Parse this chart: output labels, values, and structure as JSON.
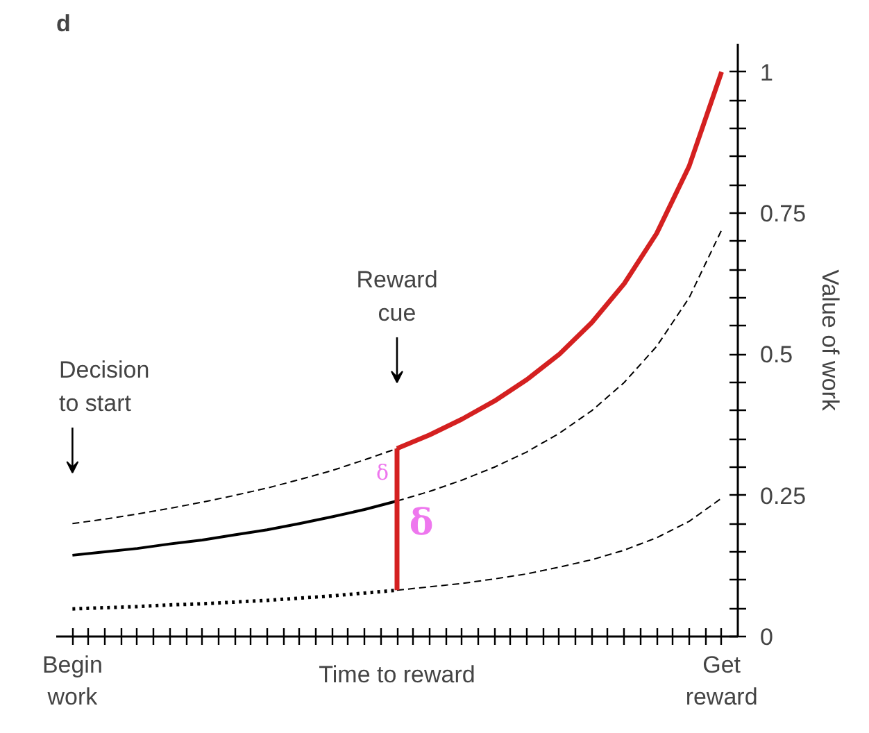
{
  "chart_data": {
    "type": "line",
    "title": "d",
    "xlabel": "Time to reward",
    "ylabel": "Value of work",
    "categories": [
      "Begin\nwork",
      null,
      null,
      null,
      null,
      null,
      null,
      null,
      null,
      null,
      null,
      null,
      null,
      null,
      null,
      null,
      null,
      null,
      null,
      null,
      "Get\nreward"
    ],
    "ylim": [
      0,
      1.05
    ],
    "yticks": [
      0,
      {
        "value": 0.05,
        "label": null
      },
      {
        "value": 0.1,
        "label": null
      },
      {
        "value": 0.15,
        "label": null
      },
      {
        "value": 0.2,
        "label": null
      },
      0.25,
      {
        "value": 0.3,
        "label": null
      },
      {
        "value": 0.35,
        "label": null
      },
      {
        "value": 0.4,
        "label": null
      },
      {
        "value": 0.45,
        "label": null
      },
      0.5,
      {
        "value": 0.55,
        "label": null
      },
      {
        "value": 0.6,
        "label": null
      },
      {
        "value": 0.65,
        "label": null
      },
      {
        "value": 0.7,
        "label": null
      },
      0.75,
      {
        "value": 0.8,
        "label": null
      },
      {
        "value": 0.85,
        "label": null
      },
      {
        "value": 0.9,
        "label": null
      },
      {
        "value": 0.95,
        "label": null
      },
      1
    ],
    "grid": false,
    "marker": "none",
    "series": [
      {
        "color": "#000000",
        "line_style": "dashed",
        "values": [
          0.2,
          0.208,
          0.217,
          0.227,
          0.238,
          0.25,
          0.263,
          0.278,
          0.294,
          0.313,
          0.333,
          null,
          null,
          null,
          null,
          null,
          null,
          null,
          null,
          null,
          null
        ]
      },
      {
        "color": "#000000",
        "line_style": "solid",
        "values": [
          0.144,
          0.15,
          0.156,
          0.164,
          0.171,
          0.18,
          0.189,
          0.2,
          0.212,
          0.225,
          0.24,
          null,
          null,
          null,
          null,
          null,
          null,
          null,
          null,
          null,
          null
        ]
      },
      {
        "color": "#000000",
        "line_style": "dotted",
        "values": [
          0.049,
          0.051,
          0.053,
          0.056,
          0.058,
          0.061,
          0.064,
          0.068,
          0.072,
          0.077,
          0.082,
          null,
          null,
          null,
          null,
          null,
          null,
          null,
          null,
          null,
          null
        ]
      },
      {
        "color": "#000000",
        "line_style": "dashed",
        "values": [
          null,
          null,
          null,
          null,
          null,
          null,
          null,
          null,
          null,
          null,
          0.24,
          0.257,
          0.277,
          0.3,
          0.327,
          0.36,
          0.4,
          0.45,
          0.514,
          0.6,
          0.72
        ]
      },
      {
        "color": "#000000",
        "line_style": "dashed",
        "values": [
          null,
          null,
          null,
          null,
          null,
          null,
          null,
          null,
          null,
          null,
          0.082,
          0.088,
          0.094,
          0.102,
          0.111,
          0.123,
          0.136,
          0.153,
          0.175,
          0.204,
          0.245
        ]
      },
      {
        "color": "#d42020",
        "line_style": "solid",
        "values": [
          null,
          null,
          null,
          null,
          null,
          null,
          null,
          null,
          null,
          null,
          0.333,
          0.357,
          0.385,
          0.417,
          0.455,
          0.5,
          0.556,
          0.625,
          0.714,
          0.833,
          1
        ]
      },
      {
        "type": "bar",
        "color": "#d42020",
        "base": [
          null,
          null,
          null,
          null,
          null,
          null,
          null,
          null,
          null,
          null,
          0.082,
          null,
          null,
          null,
          null,
          null,
          null,
          null,
          null,
          null,
          null
        ],
        "values": [
          null,
          null,
          null,
          null,
          null,
          null,
          null,
          null,
          null,
          null,
          0.251,
          null,
          null,
          null,
          null,
          null,
          null,
          null,
          null,
          null,
          null
        ]
      }
    ],
    "annotations": [
      "Decision\nto start",
      "Reward\ncue",
      "δ",
      "δ"
    ]
  }
}
